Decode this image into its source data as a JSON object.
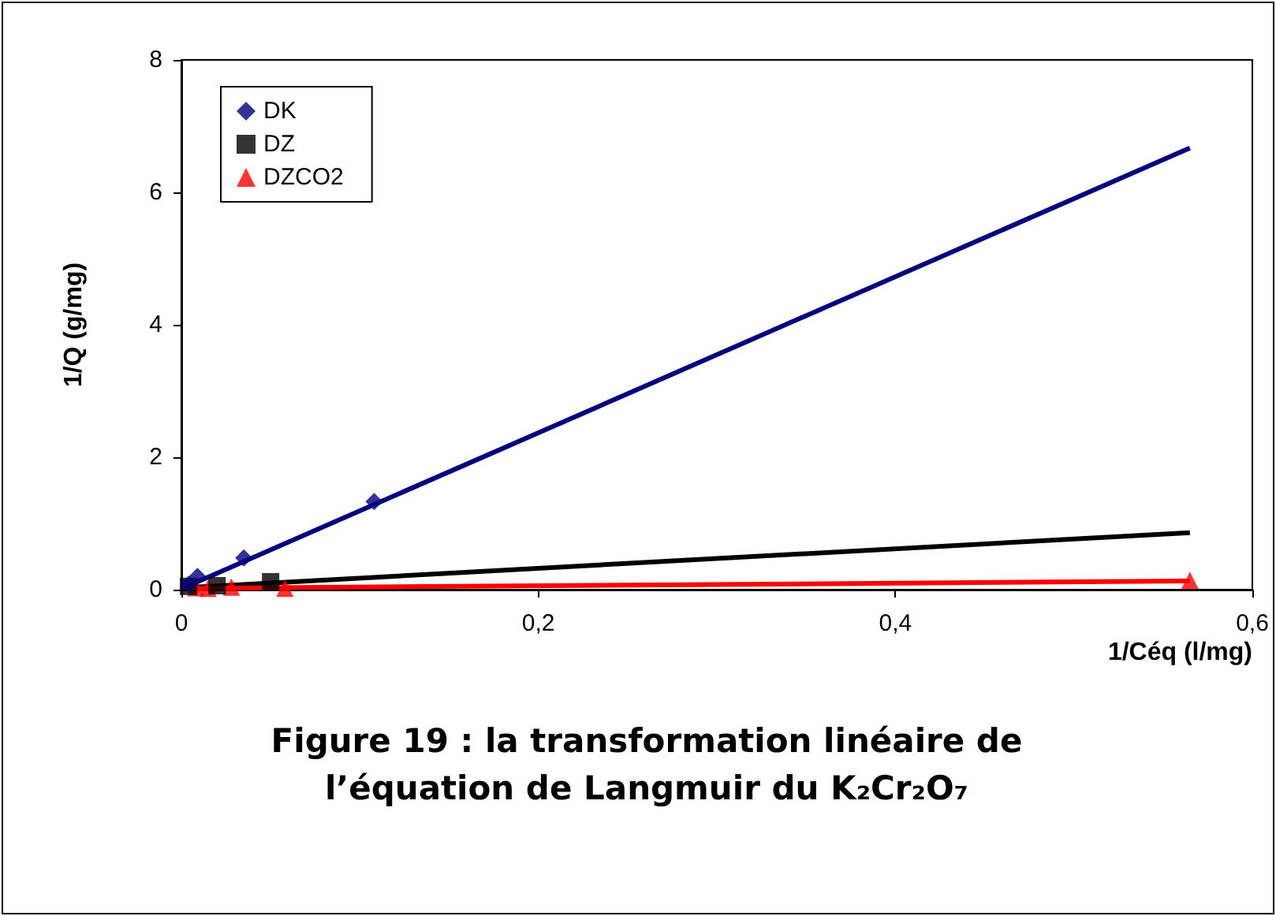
{
  "chart_data": {
    "type": "scatter",
    "xlabel": "1/Céq (l/mg)",
    "ylabel": "1/Q (g/mg)",
    "xlim": [
      0,
      0.6
    ],
    "ylim": [
      0,
      8
    ],
    "xticks": [
      0,
      {
        "value": 0.2,
        "label": "0,2"
      },
      {
        "value": 0.4,
        "label": "0,4"
      },
      {
        "value": 0.6,
        "label": "0,6"
      }
    ],
    "yticks": [
      0,
      2,
      4,
      6,
      8
    ],
    "grid": false,
    "legend": "top left",
    "annotations": [
      "Figure 19 : la transformation linéaire de l’équation de Langmuir du K₂Cr₂O₇"
    ],
    "series": [
      {
        "type": "line",
        "color": "#000080",
        "marker": "none",
        "x": [
          0.004,
          0.565
        ],
        "values": [
          0.06,
          6.67
        ]
      },
      {
        "type": "line",
        "color": "#000000",
        "marker": "none",
        "x": [
          0.002,
          0.565
        ],
        "values": [
          0.03,
          0.86
        ]
      },
      {
        "type": "line",
        "color": "#ff0000",
        "marker": "none",
        "x": [
          0.002,
          0.565
        ],
        "values": [
          0.02,
          0.13
        ]
      },
      {
        "name": "DK",
        "color": "#000080",
        "marker": "diamond",
        "x": [
          0.004,
          0.009,
          0.035,
          0.108
        ],
        "values": [
          0.08,
          0.2,
          0.48,
          1.33
        ]
      },
      {
        "name": "DZ",
        "color": "#000000",
        "marker": "square",
        "x": [
          0.004,
          0.02,
          0.05
        ],
        "values": [
          0.05,
          0.06,
          0.12
        ]
      },
      {
        "name": "DZCO2",
        "color": "#ff0000",
        "marker": "triangle",
        "x": [
          0.008,
          0.015,
          0.028,
          0.058,
          0.565
        ],
        "values": [
          0.03,
          0.02,
          0.04,
          0.02,
          0.14
        ]
      }
    ]
  }
}
